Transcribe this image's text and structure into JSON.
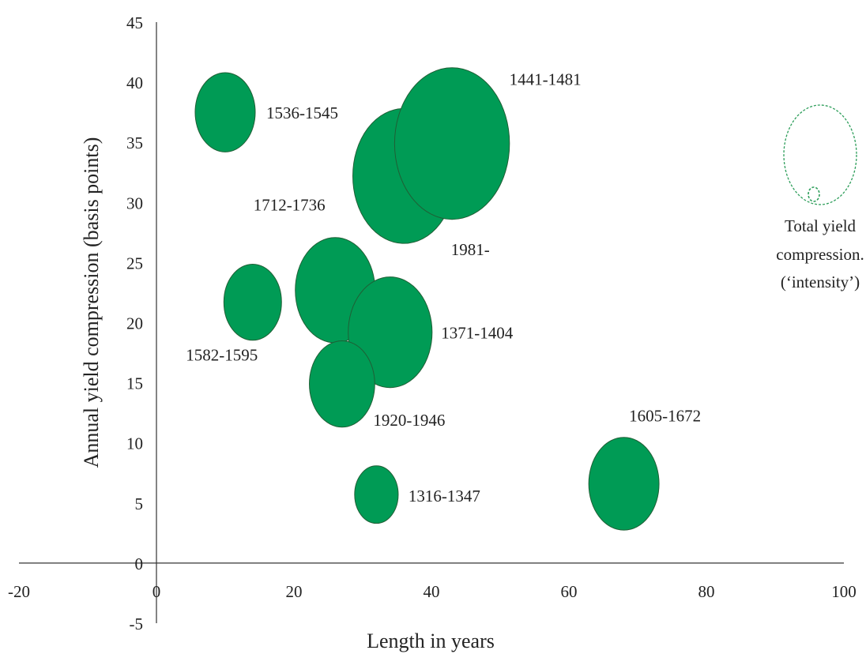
{
  "chart_data": {
    "type": "scatter",
    "xlabel": "Length in years",
    "ylabel": "Annual yield compression (basis points)",
    "xlim": [
      -20,
      100
    ],
    "ylim": [
      -5,
      45
    ],
    "x_ticks": [
      -20,
      0,
      20,
      40,
      60,
      80,
      100
    ],
    "y_ticks": [
      -5,
      0,
      5,
      10,
      15,
      20,
      25,
      30,
      35,
      40,
      45
    ],
    "grid": false,
    "bubble_color": "#009B55",
    "bubble_outline": "#1F5F35",
    "series": [
      {
        "label": "1536-1545",
        "x": 10,
        "y": 37.5,
        "size": 3.8
      },
      {
        "label": "1981-",
        "x": 36,
        "y": 32.2,
        "size": 11
      },
      {
        "label": "1441-1481",
        "x": 43,
        "y": 34.9,
        "size": 13.9
      },
      {
        "label": "1712-1736",
        "x": 26,
        "y": 22.7,
        "size": 6.7
      },
      {
        "label": "1582-1595",
        "x": 14,
        "y": 21.7,
        "size": 3.5
      },
      {
        "label": "1371-1404",
        "x": 34,
        "y": 19.2,
        "size": 7.4
      },
      {
        "label": "1920-1946",
        "x": 27,
        "y": 14.9,
        "size": 4.5
      },
      {
        "label": "1316-1347",
        "x": 32,
        "y": 5.7,
        "size": 2
      },
      {
        "label": "1605-1672",
        "x": 68,
        "y": 6.6,
        "size": 5.2
      }
    ],
    "legend": {
      "text_lines": [
        "Total yield",
        "compression.",
        "(‘intensity’)"
      ],
      "placement": "right"
    }
  }
}
